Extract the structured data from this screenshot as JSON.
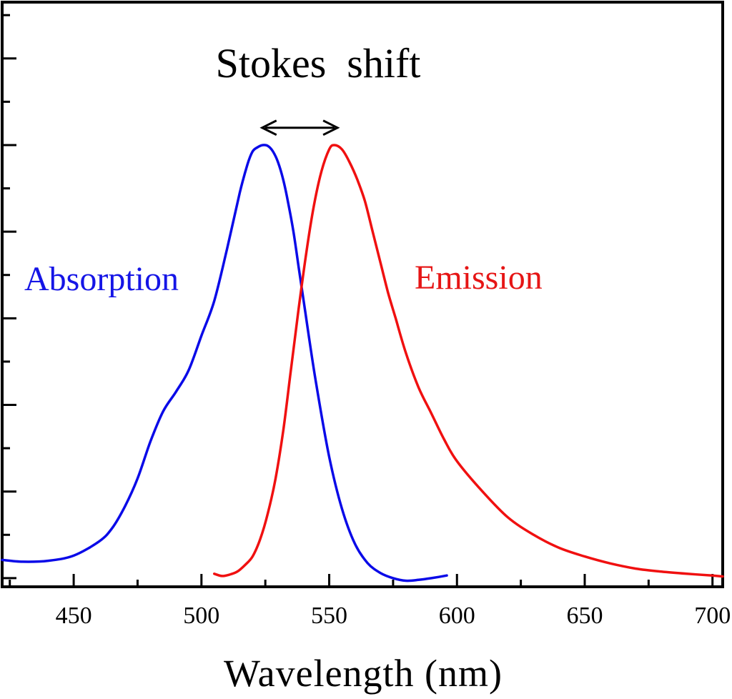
{
  "chart_data": {
    "type": "line",
    "title": "Stokes  shift",
    "xlabel": "Wavelength (nm)",
    "ylabel": "",
    "xlim": [
      422,
      704
    ],
    "ylim": [
      -0.02,
      1.33
    ],
    "x_ticks": [
      450,
      500,
      550,
      600,
      650,
      700
    ],
    "x_tick_labels": [
      "450",
      "500",
      "550",
      "600",
      "650",
      "700"
    ],
    "y_major_ticks": [
      0.0,
      0.2,
      0.4,
      0.6,
      0.8,
      1.0,
      1.2
    ],
    "y_tick_labels_visible": false,
    "grid": false,
    "annotation": {
      "text": "Stokes  shift",
      "arrow_from_x": 526,
      "arrow_to_x": 551,
      "arrow_y": 1.04,
      "style": "double-headed"
    },
    "series": [
      {
        "name": "Absorption",
        "label_color": "#1515e6",
        "color": "#0a0ae8",
        "x": [
          422,
          430,
          440,
          450,
          460,
          465,
          470,
          475,
          480,
          485,
          490,
          495,
          500,
          505,
          510,
          515,
          518,
          520,
          522,
          524,
          526,
          528,
          530,
          532,
          534,
          536,
          538,
          540,
          542,
          545,
          550,
          555,
          560,
          565,
          570,
          575,
          580,
          585,
          590,
          596
        ],
        "y": [
          0.042,
          0.038,
          0.04,
          0.052,
          0.085,
          0.115,
          0.165,
          0.23,
          0.315,
          0.385,
          0.43,
          0.48,
          0.56,
          0.64,
          0.76,
          0.89,
          0.955,
          0.985,
          0.995,
          1.0,
          0.998,
          0.985,
          0.96,
          0.92,
          0.865,
          0.8,
          0.72,
          0.64,
          0.56,
          0.445,
          0.28,
          0.16,
          0.08,
          0.035,
          0.012,
          0.0,
          -0.006,
          -0.004,
          0.0,
          0.006
        ]
      },
      {
        "name": "Emission",
        "label_color": "#e61515",
        "color": "#f01010",
        "x": [
          505,
          508,
          511,
          514,
          517,
          520,
          523,
          526,
          529,
          532,
          535,
          538,
          541,
          544,
          547,
          550,
          552,
          555,
          558,
          561,
          564,
          567,
          570,
          573,
          576,
          580,
          585,
          590,
          595,
          600,
          610,
          620,
          630,
          640,
          650,
          660,
          670,
          680,
          690,
          700,
          704
        ],
        "y": [
          0.01,
          0.005,
          0.008,
          0.015,
          0.03,
          0.05,
          0.09,
          0.15,
          0.23,
          0.34,
          0.48,
          0.62,
          0.75,
          0.86,
          0.94,
          0.99,
          1.0,
          0.99,
          0.96,
          0.92,
          0.87,
          0.8,
          0.73,
          0.66,
          0.6,
          0.52,
          0.44,
          0.38,
          0.32,
          0.27,
          0.2,
          0.14,
          0.1,
          0.07,
          0.05,
          0.034,
          0.022,
          0.015,
          0.01,
          0.006,
          0.004
        ]
      }
    ]
  }
}
